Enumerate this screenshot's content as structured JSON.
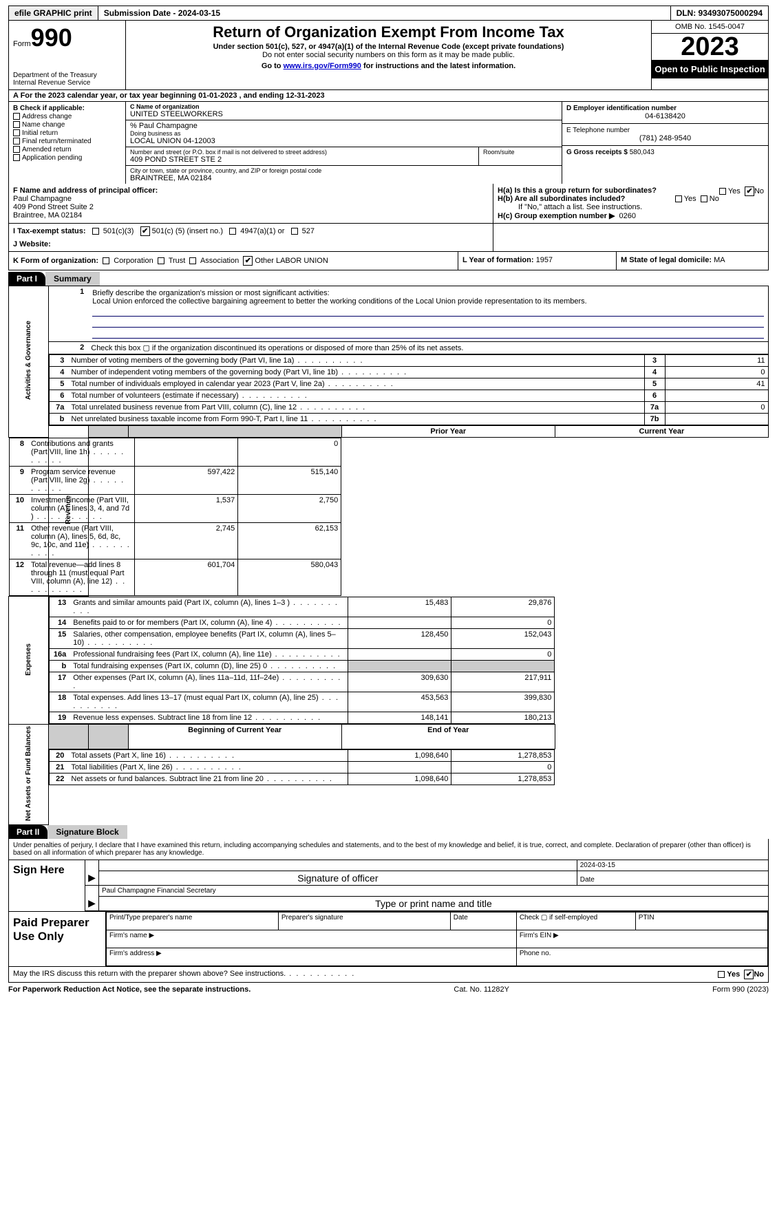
{
  "topbar": {
    "efile": "efile GRAPHIC print",
    "submission": "Submission Date - 2024-03-15",
    "dln": "DLN: 93493075000294"
  },
  "header": {
    "form_label": "Form",
    "form_num": "990",
    "dept": "Department of the Treasury\nInternal Revenue Service",
    "title": "Return of Organization Exempt From Income Tax",
    "sub1": "Under section 501(c), 527, or 4947(a)(1) of the Internal Revenue Code (except private foundations)",
    "sub2": "Do not enter social security numbers on this form as it may be made public.",
    "sub3_pre": "Go to ",
    "sub3_link": "www.irs.gov/Form990",
    "sub3_post": " for instructions and the latest information.",
    "omb": "OMB No. 1545-0047",
    "year": "2023",
    "inspect": "Open to Public Inspection"
  },
  "row_a": "A  For the 2023 calendar year, or tax year beginning 01-01-2023   , and ending 12-31-2023",
  "box_b": {
    "title": "B Check if applicable:",
    "opts": [
      "Address change",
      "Name change",
      "Initial return",
      "Final return/terminated",
      "Amended return",
      "Application pending"
    ]
  },
  "box_c": {
    "lbl_name": "C Name of organization",
    "name": "UNITED STEELWORKERS",
    "care_of": "% Paul Champagne",
    "dba_lbl": "Doing business as",
    "dba": "LOCAL UNION 04-12003",
    "addr_lbl": "Number and street (or P.O. box if mail is not delivered to street address)",
    "addr": "409 POND STREET STE 2",
    "room_lbl": "Room/suite",
    "city_lbl": "City or town, state or province, country, and ZIP or foreign postal code",
    "city": "BRAINTREE, MA  02184"
  },
  "box_d": {
    "lbl": "D Employer identification number",
    "val": "04-6138420"
  },
  "box_e": {
    "lbl": "E Telephone number",
    "val": "(781) 248-9540"
  },
  "box_g": {
    "lbl": "G Gross receipts $",
    "val": "580,043"
  },
  "box_f": {
    "lbl": "F  Name and address of principal officer:",
    "name": "Paul Champagne",
    "addr1": "409 Pond Street Suite 2",
    "addr2": "Braintree, MA  02184"
  },
  "box_h": {
    "a": "H(a)  Is this a group return for subordinates?",
    "b": "H(b)  Are all subordinates included?",
    "b_note": "If \"No,\" attach a list. See instructions.",
    "c_lbl": "H(c)  Group exemption number ▶",
    "c_val": "0260",
    "yes": "Yes",
    "no": "No"
  },
  "box_i": {
    "lbl": "I   Tax-exempt status:",
    "o1": "501(c)(3)",
    "o2_pre": "501(c) (",
    "o2_val": "5",
    "o2_post": ") (insert no.)",
    "o3": "4947(a)(1) or",
    "o4": "527"
  },
  "box_j": {
    "lbl": "J   Website:",
    "val": ""
  },
  "box_k": {
    "lbl": "K Form of organization:",
    "opts": [
      "Corporation",
      "Trust",
      "Association",
      "Other"
    ],
    "other_val": "LABOR UNION"
  },
  "box_l": {
    "lbl": "L Year of formation:",
    "val": "1957"
  },
  "box_m": {
    "lbl": "M State of legal domicile:",
    "val": "MA"
  },
  "part1": {
    "num": "Part I",
    "title": "Summary"
  },
  "summary": {
    "sections": {
      "ag": "Activities & Governance",
      "rev": "Revenue",
      "exp": "Expenses",
      "na": "Net Assets or Fund Balances"
    },
    "l1_lbl": "Briefly describe the organization's mission or most significant activities:",
    "l1_val": "Local Union enforced the collective bargaining agreement to better the working conditions of the Local Union provide representation to its members.",
    "l2": "Check this box ▢ if the organization discontinued its operations or disposed of more than 25% of its net assets.",
    "rows_ag": [
      {
        "n": "3",
        "d": "Number of voting members of the governing body (Part VI, line 1a)",
        "k": "3",
        "v": "11"
      },
      {
        "n": "4",
        "d": "Number of independent voting members of the governing body (Part VI, line 1b)",
        "k": "4",
        "v": "0"
      },
      {
        "n": "5",
        "d": "Total number of individuals employed in calendar year 2023 (Part V, line 2a)",
        "k": "5",
        "v": "41"
      },
      {
        "n": "6",
        "d": "Total number of volunteers (estimate if necessary)",
        "k": "6",
        "v": ""
      },
      {
        "n": "7a",
        "d": "Total unrelated business revenue from Part VIII, column (C), line 12",
        "k": "7a",
        "v": "0"
      },
      {
        "n": "b",
        "d": "Net unrelated business taxable income from Form 990-T, Part I, line 11",
        "k": "7b",
        "v": ""
      }
    ],
    "hdr_prior": "Prior Year",
    "hdr_current": "Current Year",
    "rows_rev": [
      {
        "n": "8",
        "d": "Contributions and grants (Part VIII, line 1h)",
        "p": "",
        "c": "0"
      },
      {
        "n": "9",
        "d": "Program service revenue (Part VIII, line 2g)",
        "p": "597,422",
        "c": "515,140"
      },
      {
        "n": "10",
        "d": "Investment income (Part VIII, column (A), lines 3, 4, and 7d )",
        "p": "1,537",
        "c": "2,750"
      },
      {
        "n": "11",
        "d": "Other revenue (Part VIII, column (A), lines 5, 6d, 8c, 9c, 10c, and 11e)",
        "p": "2,745",
        "c": "62,153"
      },
      {
        "n": "12",
        "d": "Total revenue—add lines 8 through 11 (must equal Part VIII, column (A), line 12)",
        "p": "601,704",
        "c": "580,043"
      }
    ],
    "rows_exp": [
      {
        "n": "13",
        "d": "Grants and similar amounts paid (Part IX, column (A), lines 1–3 )",
        "p": "15,483",
        "c": "29,876"
      },
      {
        "n": "14",
        "d": "Benefits paid to or for members (Part IX, column (A), line 4)",
        "p": "",
        "c": "0"
      },
      {
        "n": "15",
        "d": "Salaries, other compensation, employee benefits (Part IX, column (A), lines 5–10)",
        "p": "128,450",
        "c": "152,043"
      },
      {
        "n": "16a",
        "d": "Professional fundraising fees (Part IX, column (A), line 11e)",
        "p": "",
        "c": "0"
      },
      {
        "n": "b",
        "d": "Total fundraising expenses (Part IX, column (D), line 25) 0",
        "p": "SHADE",
        "c": "SHADE"
      },
      {
        "n": "17",
        "d": "Other expenses (Part IX, column (A), lines 11a–11d, 11f–24e)",
        "p": "309,630",
        "c": "217,911"
      },
      {
        "n": "18",
        "d": "Total expenses. Add lines 13–17 (must equal Part IX, column (A), line 25)",
        "p": "453,563",
        "c": "399,830"
      },
      {
        "n": "19",
        "d": "Revenue less expenses. Subtract line 18 from line 12",
        "p": "148,141",
        "c": "180,213"
      }
    ],
    "hdr_begin": "Beginning of Current Year",
    "hdr_end": "End of Year",
    "rows_na": [
      {
        "n": "20",
        "d": "Total assets (Part X, line 16)",
        "p": "1,098,640",
        "c": "1,278,853"
      },
      {
        "n": "21",
        "d": "Total liabilities (Part X, line 26)",
        "p": "",
        "c": "0"
      },
      {
        "n": "22",
        "d": "Net assets or fund balances. Subtract line 21 from line 20",
        "p": "1,098,640",
        "c": "1,278,853"
      }
    ]
  },
  "part2": {
    "num": "Part II",
    "title": "Signature Block"
  },
  "sig": {
    "text": "Under penalties of perjury, I declare that I have examined this return, including accompanying schedules and statements, and to the best of my knowledge and belief, it is true, correct, and complete. Declaration of preparer (other than officer) is based on all information of which preparer has any knowledge.",
    "sign_here": "Sign Here",
    "sig_officer": "Signature of officer",
    "date_lbl": "Date",
    "date_val": "2024-03-15",
    "name_title": "Paul Champagne Financial Secretary",
    "type_lbl": "Type or print name and title",
    "paid": "Paid Preparer Use Only",
    "pp_name": "Print/Type preparer's name",
    "pp_sig": "Preparer's signature",
    "pp_date": "Date",
    "pp_check": "Check ▢ if self-employed",
    "ptin": "PTIN",
    "firm_name": "Firm's name ▶",
    "firm_ein": "Firm's EIN ▶",
    "firm_addr": "Firm's address ▶",
    "phone": "Phone no."
  },
  "discuss": {
    "q": "May the IRS discuss this return with the preparer shown above? See instructions.",
    "yes": "Yes",
    "no": "No"
  },
  "footer": {
    "l": "For Paperwork Reduction Act Notice, see the separate instructions.",
    "m": "Cat. No. 11282Y",
    "r": "Form 990 (2023)"
  },
  "style": {
    "colors": {
      "black": "#000000",
      "white": "#ffffff",
      "shade": "#cccccc",
      "link": "#0000cc",
      "ruled": "#000066"
    }
  }
}
